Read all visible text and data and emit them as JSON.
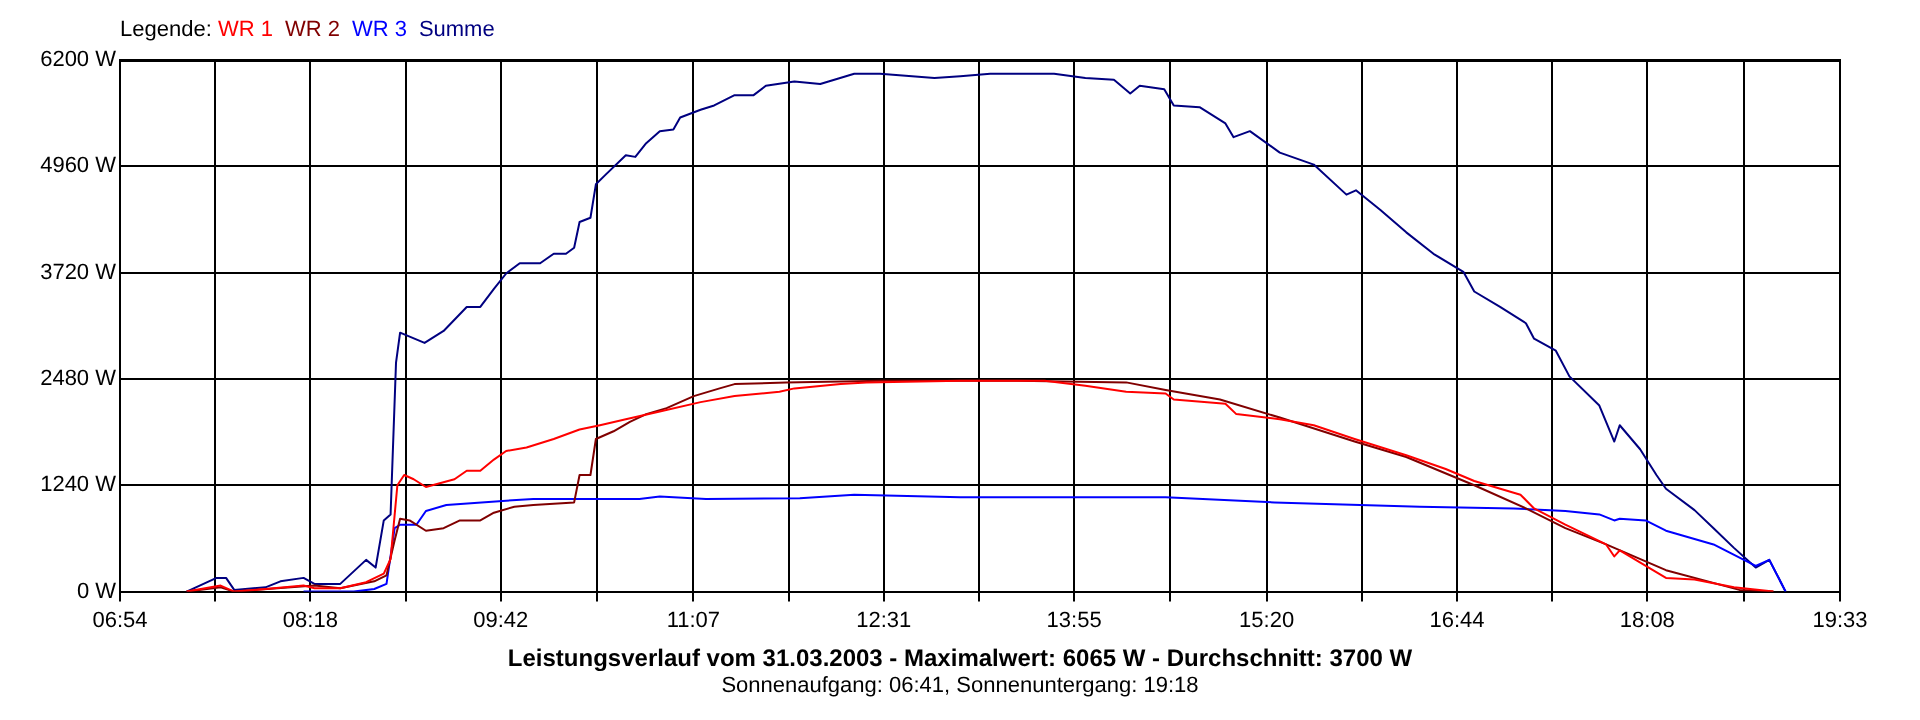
{
  "chart_data": {
    "type": "line",
    "title": "Leistungsverlauf vom 31.03.2003 - Maximalwert: 6065 W - Durchschnitt: 3700 W",
    "subtitle": "Sonnenaufgang: 06:41, Sonnenuntergang: 19:18",
    "legend_title": "Legende:",
    "legend": "top left",
    "grid": true,
    "xlim": [
      6.9,
      19.55
    ],
    "xticks": [
      {
        "value": 6.9,
        "label": "06:54"
      },
      {
        "value": 7.6,
        "label": null
      },
      {
        "value": 8.3,
        "label": "08:18"
      },
      {
        "value": 9.0,
        "label": null
      },
      {
        "value": 9.7,
        "label": "09:42"
      },
      {
        "value": 10.408,
        "label": null
      },
      {
        "value": 11.117,
        "label": "11:07"
      },
      {
        "value": 11.817,
        "label": null
      },
      {
        "value": 12.517,
        "label": "12:31"
      },
      {
        "value": 13.217,
        "label": null
      },
      {
        "value": 13.917,
        "label": "13:55"
      },
      {
        "value": 14.625,
        "label": null
      },
      {
        "value": 15.333,
        "label": "15:20"
      },
      {
        "value": 16.033,
        "label": null
      },
      {
        "value": 16.733,
        "label": "16:44"
      },
      {
        "value": 17.433,
        "label": null
      },
      {
        "value": 18.133,
        "label": "18:08"
      },
      {
        "value": 18.842,
        "label": null
      },
      {
        "value": 19.55,
        "label": "19:33"
      }
    ],
    "ylim": [
      0,
      6200
    ],
    "yticks": [
      {
        "value": 0,
        "label": "0 W"
      },
      {
        "value": 1240,
        "label": "1240 W"
      },
      {
        "value": 2480,
        "label": "2480 W"
      },
      {
        "value": 3720,
        "label": "3720 W"
      },
      {
        "value": 4960,
        "label": "4960 W"
      },
      {
        "value": 6200,
        "label": "6200 W"
      }
    ],
    "series": [
      {
        "name": "WR 1",
        "color": "#ff0000",
        "x": [
          7.39,
          7.64,
          7.74,
          7.97,
          8.25,
          8.33,
          8.52,
          8.71,
          8.84,
          8.89,
          8.94,
          8.99,
          9.06,
          9.15,
          9.36,
          9.45,
          9.55,
          9.65,
          9.74,
          9.89,
          10.09,
          10.28,
          10.43,
          10.62,
          10.87,
          11.17,
          11.42,
          11.75,
          11.86,
          12.2,
          12.39,
          13.08,
          13.7,
          14.0,
          14.3,
          14.59,
          14.65,
          15.03,
          15.11,
          15.43,
          15.68,
          15.98,
          16.36,
          16.65,
          16.86,
          17.2,
          17.3,
          17.53,
          17.83,
          17.89,
          17.93,
          18.27,
          18.48,
          18.77,
          19.06
        ],
        "values": [
          0,
          70,
          0,
          30,
          70,
          40,
          40,
          110,
          210,
          380,
          1240,
          1360,
          1310,
          1220,
          1310,
          1410,
          1410,
          1540,
          1640,
          1680,
          1780,
          1890,
          1940,
          2010,
          2100,
          2210,
          2280,
          2330,
          2370,
          2420,
          2440,
          2460,
          2460,
          2400,
          2330,
          2310,
          2240,
          2190,
          2070,
          2010,
          1940,
          1780,
          1590,
          1430,
          1290,
          1130,
          970,
          780,
          550,
          410,
          480,
          160,
          140,
          50,
          0
        ]
      },
      {
        "name": "WR 2",
        "color": "#800000",
        "x": [
          7.39,
          7.64,
          7.74,
          8.33,
          8.52,
          8.77,
          8.86,
          8.92,
          8.96,
          9.03,
          9.15,
          9.28,
          9.4,
          9.55,
          9.65,
          9.8,
          9.94,
          10.24,
          10.28,
          10.36,
          10.4,
          10.53,
          10.65,
          10.77,
          10.92,
          11.12,
          11.31,
          11.42,
          11.8,
          12.5,
          13.5,
          14.3,
          14.59,
          14.99,
          15.43,
          15.98,
          16.36,
          16.86,
          17.24,
          17.53,
          17.83,
          18.27,
          18.81,
          19.06
        ],
        "values": [
          0,
          50,
          0,
          70,
          40,
          120,
          190,
          600,
          850,
          830,
          710,
          740,
          830,
          830,
          920,
          990,
          1010,
          1040,
          1360,
          1360,
          1780,
          1870,
          1980,
          2070,
          2140,
          2280,
          2370,
          2420,
          2440,
          2460,
          2460,
          2440,
          2350,
          2240,
          2030,
          1750,
          1570,
          1240,
          970,
          740,
          550,
          250,
          20,
          0
        ]
      },
      {
        "name": "WR 3",
        "color": "#0000ff",
        "x": [
          8.25,
          8.62,
          8.77,
          8.86,
          8.92,
          8.96,
          9.08,
          9.15,
          9.3,
          9.74,
          9.94,
          10.72,
          10.87,
          11.21,
          11.9,
          12.3,
          13.08,
          14.59,
          15.39,
          16.46,
          17.15,
          17.53,
          17.78,
          17.89,
          17.93,
          18.12,
          18.27,
          18.62,
          18.93,
          19.03,
          19.15
        ],
        "values": [
          0,
          0,
          30,
          90,
          740,
          780,
          780,
          940,
          1010,
          1060,
          1080,
          1080,
          1110,
          1080,
          1090,
          1130,
          1100,
          1100,
          1040,
          990,
          970,
          940,
          900,
          830,
          850,
          830,
          710,
          550,
          300,
          370,
          0
        ]
      },
      {
        "name": "Summe",
        "color": "#000080",
        "x": [
          7.39,
          7.61,
          7.68,
          7.74,
          7.97,
          8.08,
          8.25,
          8.33,
          8.52,
          8.71,
          8.78,
          8.84,
          8.89,
          8.93,
          8.96,
          9.14,
          9.28,
          9.45,
          9.55,
          9.65,
          9.74,
          9.84,
          9.99,
          10.09,
          10.18,
          10.24,
          10.28,
          10.36,
          10.4,
          10.47,
          10.62,
          10.69,
          10.77,
          10.87,
          10.97,
          11.02,
          11.17,
          11.27,
          11.42,
          11.56,
          11.65,
          11.86,
          12.05,
          12.3,
          12.49,
          12.89,
          13.08,
          13.3,
          13.77,
          14.0,
          14.21,
          14.33,
          14.4,
          14.58,
          14.65,
          14.84,
          15.03,
          15.09,
          15.21,
          15.43,
          15.68,
          15.92,
          15.99,
          16.17,
          16.36,
          16.56,
          16.78,
          16.86,
          17.05,
          17.24,
          17.3,
          17.46,
          17.56,
          17.78,
          17.89,
          17.93,
          18.08,
          18.2,
          18.27,
          18.48,
          18.62,
          18.77,
          18.93,
          19.03,
          19.15
        ],
        "values": [
          0,
          160,
          160,
          20,
          50,
          120,
          160,
          90,
          90,
          370,
          280,
          830,
          900,
          2670,
          3020,
          2900,
          3040,
          3320,
          3320,
          3530,
          3710,
          3830,
          3830,
          3940,
          3940,
          4010,
          4310,
          4360,
          4750,
          4860,
          5090,
          5070,
          5230,
          5370,
          5390,
          5530,
          5620,
          5670,
          5790,
          5790,
          5900,
          5950,
          5920,
          6040,
          6040,
          5990,
          6010,
          6040,
          6040,
          5990,
          5970,
          5810,
          5900,
          5860,
          5670,
          5650,
          5460,
          5300,
          5370,
          5120,
          4980,
          4630,
          4680,
          4450,
          4190,
          3940,
          3730,
          3500,
          3320,
          3130,
          2950,
          2810,
          2510,
          2170,
          1750,
          1940,
          1660,
          1360,
          1200,
          950,
          740,
          510,
          280,
          370,
          0
        ]
      }
    ]
  }
}
